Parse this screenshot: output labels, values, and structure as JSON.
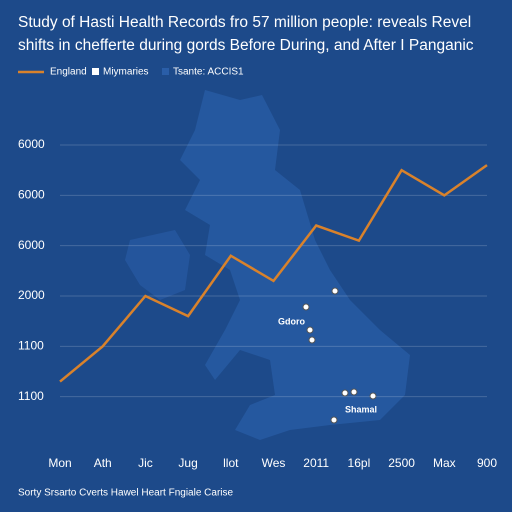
{
  "chart_data": {
    "type": "line",
    "title": "Study of Hasti Health Records fro 57 million people: reveals Revel",
    "subtitle": "shifts in chefferte during gords Before During, and After I Panganic",
    "legend_items": [
      "England",
      "Miymaries",
      "Tsante: ACCIS1"
    ],
    "categories": [
      "Mon",
      "Ath",
      "Jic",
      "Jug",
      "llot",
      "Wes",
      "2011",
      "16pl",
      "2500",
      "Max",
      "900"
    ],
    "series": [
      {
        "name": "England",
        "color": "#d9822b",
        "values": [
          1.3,
          2.0,
          3.0,
          2.6,
          3.8,
          3.3,
          4.4,
          4.1,
          5.5,
          5.0,
          5.6
        ]
      }
    ],
    "ylim": [
      0,
      6
    ],
    "yticks": [
      {
        "value": 1,
        "label": "1100"
      },
      {
        "value": 2,
        "label": "1100"
      },
      {
        "value": 3,
        "label": "2000"
      },
      {
        "value": 4,
        "label": "6000"
      },
      {
        "value": 5,
        "label": "6000"
      },
      {
        "value": 6,
        "label": "6000"
      }
    ],
    "grid": true,
    "annotations": [
      "Gdoro",
      "Shamal"
    ],
    "footer": "Sorty Srsarto Cverts Hawel Heart Fngiale Carise"
  }
}
